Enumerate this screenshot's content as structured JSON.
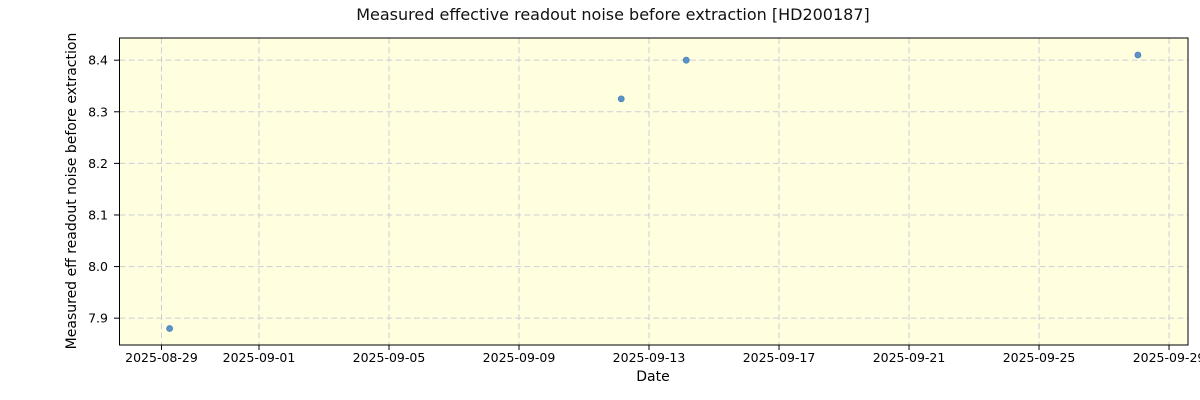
{
  "chart_data": {
    "type": "scatter",
    "title": "Measured effective readout noise before extraction [HD200187]",
    "xlabel": "Date",
    "ylabel": "Measured eff readout noise before extraction",
    "x_ticks": [
      "2025-08-29",
      "2025-09-01",
      "2025-09-05",
      "2025-09-09",
      "2025-09-13",
      "2025-09-17",
      "2025-09-21",
      "2025-09-25",
      "2025-09-29"
    ],
    "y_ticks": [
      "7.9",
      "8.0",
      "8.1",
      "8.2",
      "8.3",
      "8.4"
    ],
    "xlim": [
      "2025-08-27T17:00:00Z",
      "2025-09-29T14:00:00Z"
    ],
    "ylim": [
      7.848,
      8.443
    ],
    "grid": true,
    "legend": null,
    "points": [
      {
        "date": "2025-08-29T06:00:00Z",
        "value": 7.88
      },
      {
        "date": "2025-09-12T03:30:00Z",
        "value": 8.325
      },
      {
        "date": "2025-09-14T03:30:00Z",
        "value": 8.4
      },
      {
        "date": "2025-09-28T01:00:00Z",
        "value": 8.41
      }
    ],
    "colors": {
      "figure_bg": "#ffffff",
      "plot_bg": "#ffffe0",
      "grid": "#cccdd5",
      "spine": "#000000",
      "marker": "#5b92c5",
      "marker_edge": "#4886bb"
    }
  }
}
